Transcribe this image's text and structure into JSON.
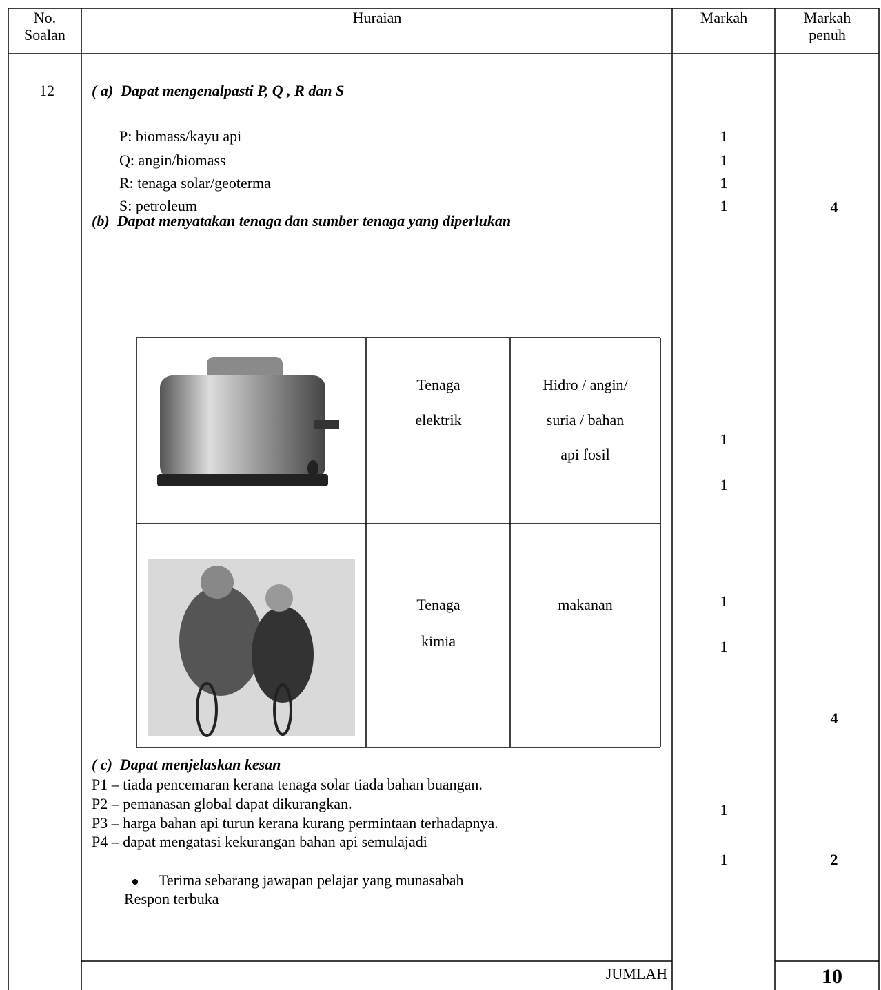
{
  "header": {
    "number_lines": [
      "No.",
      "Soalan"
    ],
    "description": "Huraian",
    "marks": "Markah",
    "full_marks_lines": [
      "Markah",
      "penuh"
    ]
  },
  "question_number": 12,
  "part_a": {
    "heading": "( a)  Dapat mengenalpasti P, Q , R dan S",
    "answers": [
      "P: biomass/kayu api",
      "Q: angin/biomass",
      "R: tenaga solar/geoterma",
      "S: petroleum"
    ],
    "marks": [
      1,
      1,
      1,
      1
    ],
    "full_marks": 4
  },
  "part_b": {
    "heading": "(b)  Dapat menyatakan tenaga dan sumber tenaga yang diperlukan",
    "rows": [
      {
        "energy_lines": [
          "Tenaga",
          "elektrik"
        ],
        "source_lines": [
          "Hidro / angin/",
          "suria / bahan",
          "api fosil"
        ],
        "marks": [
          1,
          1
        ]
      },
      {
        "energy_lines": [
          "Tenaga",
          "kimia"
        ],
        "source_lines": [
          "makanan"
        ],
        "marks": [
          1,
          1
        ]
      }
    ],
    "full_marks": 4
  },
  "part_c": {
    "heading": "( c)  Dapat menjelaskan kesan",
    "points": [
      "P1 – tiada pencemaran kerana tenaga solar tiada bahan buangan.",
      "P2 – pemanasan global dapat dikurangkan.",
      "P3 – harga bahan api turun kerana kurang permintaan terhadapnya.",
      "P4 – dapat mengatasi kekurangan bahan api semulajadi"
    ],
    "marks": [
      1,
      1
    ],
    "full_marks": 2,
    "note": "Terima sebarang jawapan pelajar yang munasabah",
    "note_extra": "Respon terbuka"
  },
  "total": {
    "label": "JUMLAH",
    "value": 10
  }
}
